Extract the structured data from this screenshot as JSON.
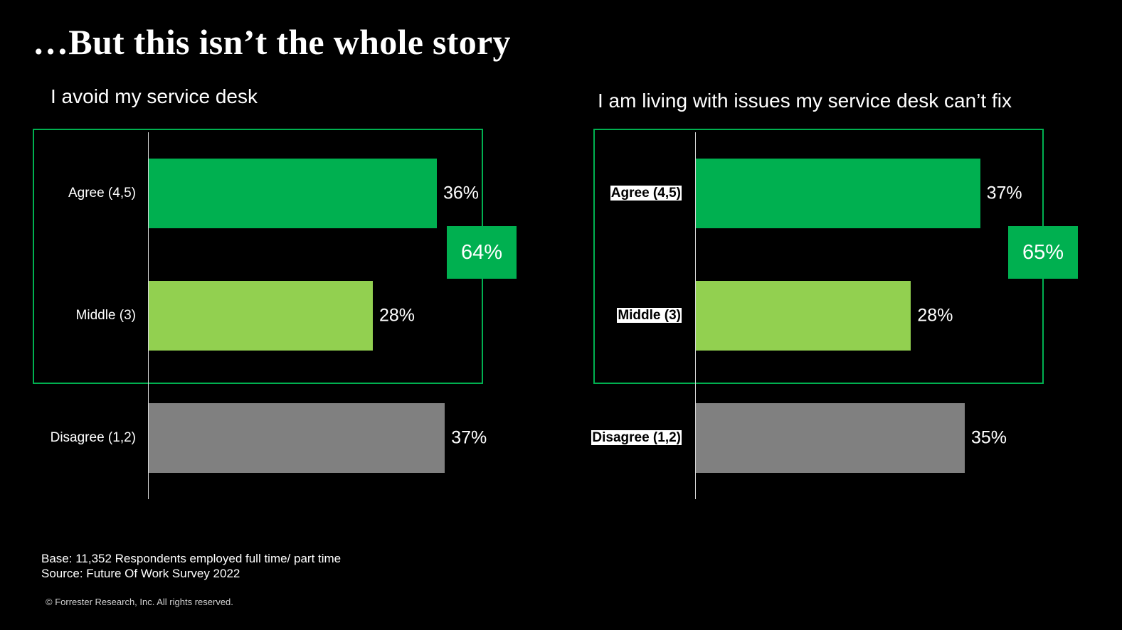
{
  "page_title": "…But this isn’t the whole story",
  "chart_data": [
    {
      "type": "bar",
      "orientation": "horizontal",
      "title": "I avoid my service desk",
      "categories": [
        "Agree (4,5)",
        "Middle (3)",
        "Disagree (1,2)"
      ],
      "values": [
        36,
        28,
        37
      ],
      "value_labels": [
        "36%",
        "28%",
        "37%"
      ],
      "colors": [
        "#00B050",
        "#92D050",
        "#808080"
      ],
      "xlim": [
        0,
        40
      ],
      "grid": false,
      "highlight_group": {
        "categories": [
          "Agree (4,5)",
          "Middle (3)"
        ],
        "total": 64,
        "total_label": "64%",
        "color": "#00B050"
      }
    },
    {
      "type": "bar",
      "orientation": "horizontal",
      "title": "I am living with issues my service desk can’t fix",
      "categories": [
        "Agree (4,5)",
        "Middle (3)",
        "Disagree (1,2)"
      ],
      "values": [
        37,
        28,
        35
      ],
      "value_labels": [
        "37%",
        "28%",
        "35%"
      ],
      "colors": [
        "#00B050",
        "#92D050",
        "#808080"
      ],
      "xlim": [
        0,
        40
      ],
      "grid": false,
      "highlight_group": {
        "categories": [
          "Agree (4,5)",
          "Middle (3)"
        ],
        "total": 65,
        "total_label": "65%",
        "color": "#00B050"
      }
    }
  ],
  "footnote": {
    "base": "Base:  11,352 Respondents employed full time/ part time",
    "source": "Source: Future Of Work Survey 2022"
  },
  "copyright": "© Forrester Research, Inc. All rights reserved."
}
